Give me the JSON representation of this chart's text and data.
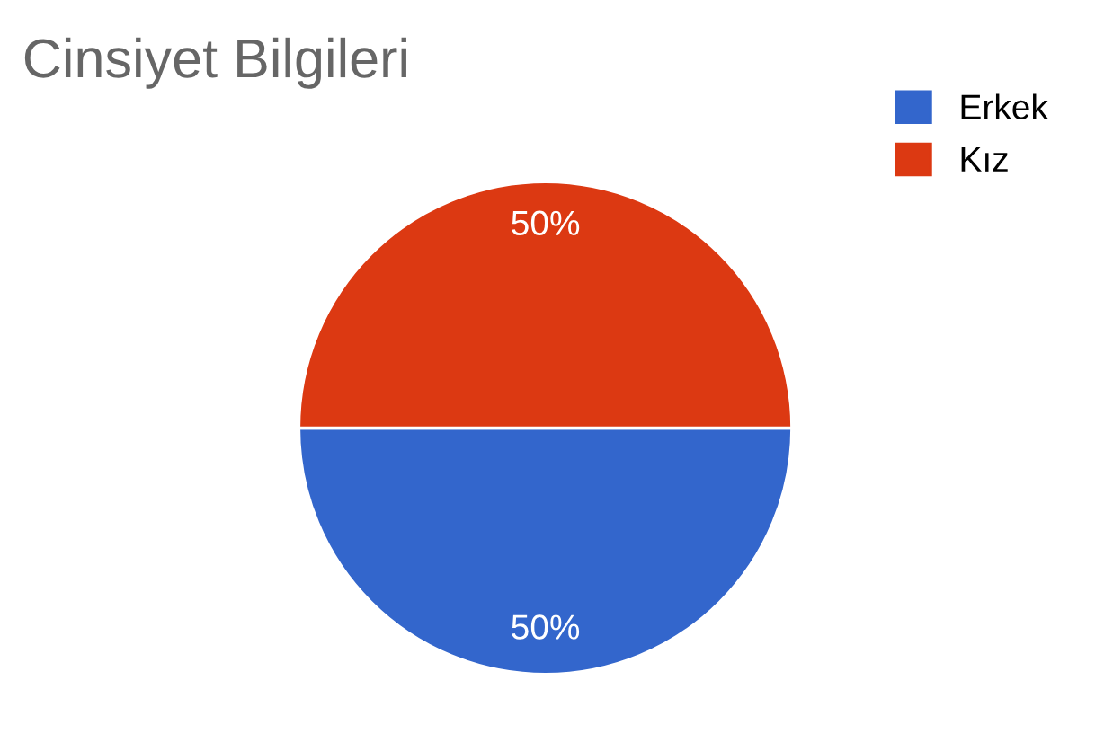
{
  "chart_data": {
    "type": "pie",
    "title": "Cinsiyet Bilgileri",
    "categories": [
      "Erkek",
      "Kız"
    ],
    "values": [
      50,
      50
    ],
    "colors": [
      "#3366cc",
      "#dc3912"
    ],
    "value_labels": [
      "50%",
      "50%"
    ],
    "legend": "top right"
  }
}
